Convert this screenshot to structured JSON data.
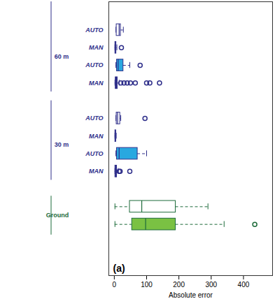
{
  "chart_data": {
    "type": "boxplot",
    "orientation": "horizontal",
    "x_label": "Absolute error",
    "panel_label": "(a)",
    "xlim": [
      -17,
      490
    ],
    "xticks": [
      0,
      100,
      200,
      300,
      400
    ],
    "groups": [
      {
        "name": "60 m",
        "color": "#2e2e8a",
        "boxes": [
          {
            "label": "AUTO",
            "color": "#ffffff",
            "min": 5,
            "q1": 7,
            "median": 15,
            "q3": 20,
            "max": 28,
            "outliers": []
          },
          {
            "label": "MAN",
            "color": "#2e2e8a",
            "min": 2,
            "q1": 3,
            "median": 4,
            "q3": 6,
            "max": 8,
            "outliers": [
              22
            ]
          },
          {
            "label": "AUTO",
            "color": "#29a8e0",
            "min": 5,
            "q1": 8,
            "median": 12,
            "q3": 28,
            "max": 48,
            "outliers": [
              80
            ]
          },
          {
            "label": "MAN",
            "color": "#2e2e8a",
            "min": 2,
            "q1": 4,
            "median": 6,
            "q3": 10,
            "max": 15,
            "outliers": [
              20,
              30,
              40,
              50,
              65,
              100,
              110,
              140
            ]
          }
        ]
      },
      {
        "name": "30 m",
        "color": "#2e2e8a",
        "boxes": [
          {
            "label": "AUTO",
            "color": "#ffffff",
            "min": 5,
            "q1": 7,
            "median": 10,
            "q3": 18,
            "max": 20,
            "outliers": [
              95
            ]
          },
          {
            "label": "MAN",
            "color": "#2e2e8a",
            "min": 2,
            "q1": 3,
            "median": 4,
            "q3": 5,
            "max": 6,
            "outliers": []
          },
          {
            "label": "AUTO",
            "color": "#29a8e0",
            "min": 5,
            "q1": 8,
            "median": 15,
            "q3": 72,
            "max": 100,
            "outliers": []
          },
          {
            "label": "MAN",
            "color": "#2e2e8a",
            "min": 2,
            "q1": 3,
            "median": 5,
            "q3": 8,
            "max": 12,
            "outliers": [
              15,
              18,
              48
            ]
          }
        ]
      },
      {
        "name": "Ground",
        "color": "#1d6b3a",
        "boxes": [
          {
            "label": null,
            "color": "#ffffff",
            "min": 2,
            "q1": 48,
            "median": 85,
            "q3": 190,
            "max": 290,
            "outliers": []
          },
          {
            "label": null,
            "color": "#7ac143",
            "min": 2,
            "q1": 55,
            "median": 97,
            "q3": 190,
            "max": 340,
            "outliers": [
              435
            ]
          }
        ]
      }
    ]
  }
}
